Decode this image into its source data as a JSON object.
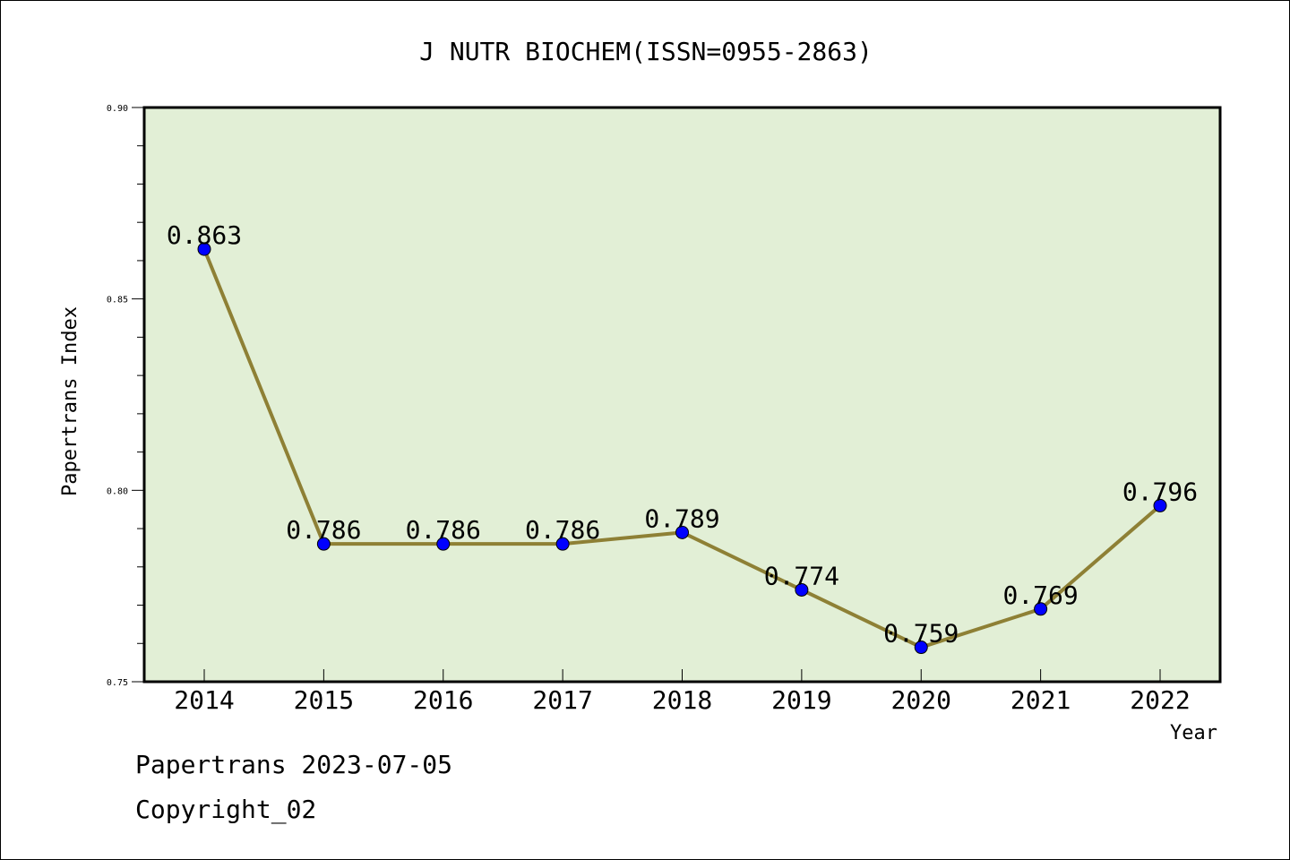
{
  "chart_data": {
    "type": "line",
    "title": "J NUTR BIOCHEM(ISSN=0955-2863)",
    "xlabel": "Year",
    "ylabel": "Papertrans Index",
    "categories": [
      "2014",
      "2015",
      "2016",
      "2017",
      "2018",
      "2019",
      "2020",
      "2021",
      "2022"
    ],
    "values": [
      0.863,
      0.786,
      0.786,
      0.786,
      0.789,
      0.774,
      0.759,
      0.769,
      0.796
    ],
    "value_labels": [
      "0.863",
      "0.786",
      "0.786",
      "0.786",
      "0.789",
      "0.774",
      "0.759",
      "0.769",
      "0.796"
    ],
    "ylim": [
      0.75,
      0.9
    ],
    "yticks": [
      0.75,
      0.8,
      0.85,
      0.9
    ],
    "ytick_labels": [
      "0.75",
      "0.80",
      "0.85",
      "0.90"
    ],
    "grid": false,
    "colors": {
      "plot_background": "#e2efd6",
      "line": "#8e8035",
      "marker": "#0000ff"
    }
  },
  "footer": {
    "line1": "Papertrans 2023-07-05",
    "line2": "Copyright_02"
  }
}
